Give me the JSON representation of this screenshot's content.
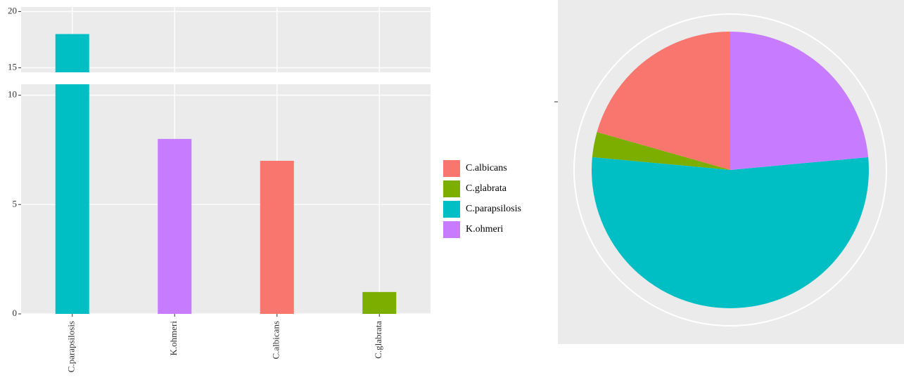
{
  "chart_data": [
    {
      "type": "bar",
      "categories": [
        "C.parapsilosis",
        "K.ohmeri",
        "C.albicans",
        "C.glabrata"
      ],
      "values": [
        18,
        8,
        7,
        1
      ],
      "colors": [
        "#00BFC4",
        "#C77CFF",
        "#F8766D",
        "#7CAE00"
      ],
      "ylim": [
        0,
        20.4
      ],
      "axis_break": [
        10.5,
        14.6
      ],
      "yticks": [
        0,
        5,
        10,
        15,
        20
      ],
      "grid": true
    },
    {
      "type": "pie",
      "categories": [
        "C.albicans",
        "C.glabrata",
        "C.parapsilosis",
        "K.ohmeri"
      ],
      "values": [
        7,
        1,
        18,
        8
      ],
      "colors": [
        "#F8766D",
        "#7CAE00",
        "#00BFC4",
        "#C77CFF"
      ],
      "direction": "counterclockwise",
      "legend": "left"
    }
  ]
}
